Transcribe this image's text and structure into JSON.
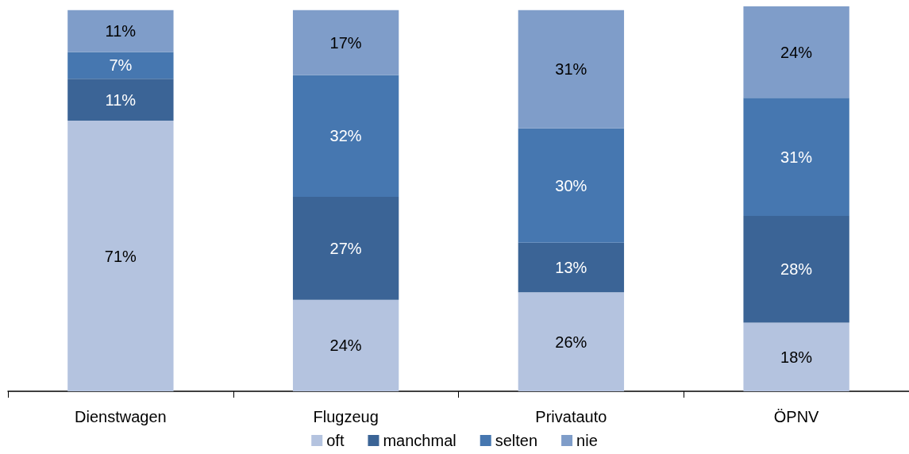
{
  "chart_data": {
    "type": "bar",
    "stacked": true,
    "categories": [
      "Dienstwagen",
      "Flugzeug",
      "Privatauto",
      "ÖPNV"
    ],
    "series": [
      {
        "name": "oft",
        "color": "#b4c3df",
        "values": [
          71,
          24,
          26,
          18
        ],
        "value_labels": [
          "71%",
          "24%",
          "26%",
          "18%"
        ]
      },
      {
        "name": "manchmal",
        "color": "#3b6496",
        "values": [
          11,
          27,
          13,
          28
        ],
        "value_labels": [
          "11%",
          "27%",
          "13%",
          "28%"
        ]
      },
      {
        "name": "selten",
        "color": "#4677b0",
        "values": [
          7,
          32,
          30,
          31
        ],
        "value_labels": [
          "7%",
          "32%",
          "30%",
          "31%"
        ]
      },
      {
        "name": "nie",
        "color": "#7f9dc9",
        "values": [
          11,
          17,
          31,
          24
        ],
        "value_labels": [
          "11%",
          "17%",
          "31%",
          "24%"
        ]
      }
    ],
    "legend": "bottom",
    "grid": false
  }
}
